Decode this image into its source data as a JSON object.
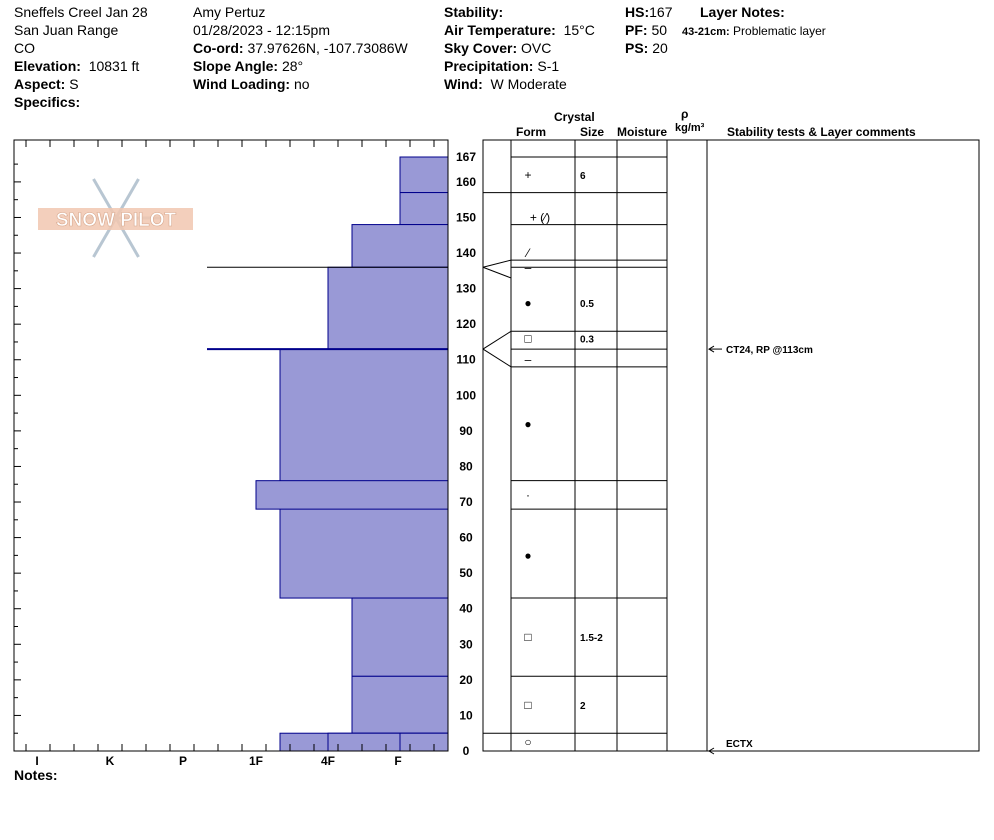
{
  "header": {
    "col1": [
      "Sneffels Creel Jan 28",
      "San Juan Range",
      "CO"
    ],
    "elevation_label": "Elevation:",
    "elevation": "10831 ft",
    "aspect_label": "Aspect:",
    "aspect": "S",
    "specifics_label": "Specifics:",
    "observer": "Amy  Pertuz",
    "datetime": "01/28/2023 - 12:15pm",
    "coord_label": "Co-ord:",
    "coord": "37.97626N, -107.73086W",
    "slope_label": "Slope Angle:",
    "slope": "28°",
    "wind_loading_label": "Wind Loading:",
    "wind_loading": "no",
    "stability_label": "Stability:",
    "stability": "",
    "air_temp_label": "Air Temperature:",
    "air_temp": "15°C",
    "sky_label": "Sky Cover:",
    "sky": "OVC",
    "precip_label": "Precipitation:",
    "precip": "S-1",
    "wind_label": "Wind:",
    "wind": "W Moderate",
    "hs_label": "HS:",
    "hs": "167",
    "pf_label": "PF:",
    "pf": "50",
    "ps_label": "PS:",
    "ps": "20",
    "layer_notes_label": "Layer Notes:",
    "layer_note_depth": "43-21cm:",
    "layer_note_text": "Problematic layer"
  },
  "logo_text": "SNOW PILOT",
  "notes_label": "Notes:",
  "colors": {
    "hardness_fill": "#9999d6",
    "hardness_stroke": "#00008b"
  },
  "table_headers": {
    "crystal": "Crystal",
    "form": "Form",
    "size": "Size",
    "moisture": "Moisture",
    "rho": "ρ",
    "density_unit": "kg/m³",
    "stability": "Stability tests & Layer comments"
  },
  "chart_data": {
    "type": "snow-profile",
    "y_axis": {
      "label": "cm",
      "ylim": [
        0,
        167
      ],
      "ticks": [
        0,
        10,
        20,
        30,
        40,
        50,
        60,
        70,
        80,
        90,
        100,
        110,
        120,
        130,
        140,
        150,
        160,
        167
      ]
    },
    "hardness_scale": [
      "I",
      "K",
      "P",
      "1F",
      "4F",
      "F"
    ],
    "hardness_ticks": [
      "F",
      "4F",
      "1F",
      "P",
      "K",
      "I"
    ],
    "hardness_layers": [
      {
        "bottom": 157,
        "top": 167,
        "hardness": "F"
      },
      {
        "bottom": 148,
        "top": 157,
        "hardness": "F"
      },
      {
        "bottom": 136,
        "top": 148,
        "hardness": "4F-"
      },
      {
        "bottom": 113,
        "top": 136,
        "hardness": "4F"
      },
      {
        "bottom": 43,
        "top": 113,
        "hardness": "1F+"
      },
      {
        "bottom": 68,
        "top": 76,
        "hardness": "1F"
      },
      {
        "bottom": 21,
        "top": 43,
        "hardness": "4F-"
      },
      {
        "bottom": 5,
        "top": 21,
        "hardness": "4F-"
      },
      {
        "bottom": 0,
        "top": 5,
        "hardness": "1F+"
      }
    ],
    "layer_boundaries": [
      167,
      157,
      148,
      138,
      136,
      118,
      113,
      108,
      76,
      68,
      43,
      21,
      5,
      0
    ],
    "crystals": [
      {
        "depth": 162,
        "form": "+",
        "size": "6"
      },
      {
        "depth": 150,
        "form": "+ (⁄)",
        "size": ""
      },
      {
        "depth": 140,
        "form": "⁄",
        "size": ""
      },
      {
        "depth": 136,
        "form": "–",
        "size": ""
      },
      {
        "depth": 126,
        "form": "●",
        "size": "0.5"
      },
      {
        "depth": 116,
        "form": "□",
        "size": "0.3"
      },
      {
        "depth": 110,
        "form": "–",
        "size": ""
      },
      {
        "depth": 92,
        "form": "●",
        "size": ""
      },
      {
        "depth": 72,
        "form": "·",
        "size": ""
      },
      {
        "depth": 55,
        "form": "●",
        "size": ""
      },
      {
        "depth": 32,
        "form": "□",
        "size": "1.5-2"
      },
      {
        "depth": 13,
        "form": "□",
        "size": "2"
      },
      {
        "depth": 2.5,
        "form": "○",
        "size": ""
      }
    ],
    "stability_tests": [
      {
        "depth": 113,
        "text": "CT24, RP @113cm"
      },
      {
        "depth": 0,
        "text": "ECTX"
      }
    ]
  }
}
